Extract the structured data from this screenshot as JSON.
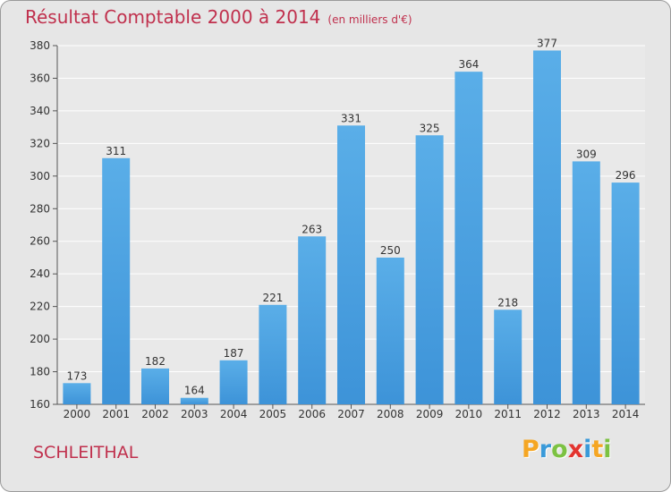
{
  "title": "Résultat Comptable 2000 à 2014",
  "subtitle": "(en milliers d'€)",
  "place": "SCHLEITHAL",
  "brand": {
    "letters": [
      "P",
      "r",
      "o",
      "x",
      "i",
      "t",
      "i"
    ],
    "colors": [
      "#f5a623",
      "#3a9ad9",
      "#7cc242",
      "#e3342f",
      "#3a9ad9",
      "#f5a623",
      "#7cc242"
    ]
  },
  "colors": {
    "bar": "#3d93d8",
    "bar_light": "#5aaee8",
    "text": "#c0304d",
    "background": "#e6e6e6"
  },
  "chart_data": {
    "type": "bar",
    "title": "Résultat Comptable 2000 à 2014",
    "subtitle": "(en milliers d'€)",
    "xlabel": "",
    "ylabel": "",
    "ylim": [
      160,
      380
    ],
    "yticks": [
      160,
      180,
      200,
      220,
      240,
      260,
      280,
      300,
      320,
      340,
      360,
      380
    ],
    "grid": true,
    "categories": [
      "2000",
      "2001",
      "2002",
      "2003",
      "2004",
      "2005",
      "2006",
      "2007",
      "2008",
      "2009",
      "2010",
      "2011",
      "2012",
      "2013",
      "2014"
    ],
    "values": [
      173,
      311,
      182,
      164,
      187,
      221,
      263,
      331,
      250,
      325,
      364,
      218,
      377,
      309,
      296
    ]
  }
}
